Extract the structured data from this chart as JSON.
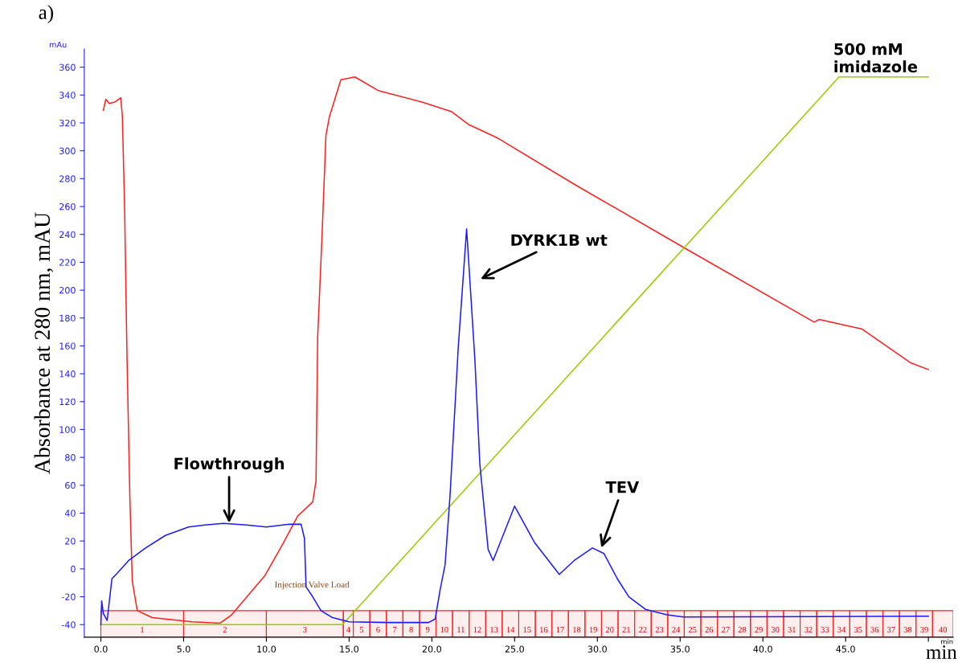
{
  "chart_data": {
    "type": "line",
    "title": "a)",
    "ylabel": "Absorbance at 280 nm, mAU",
    "xlabel": "min",
    "xlim": [
      -1,
      51.5
    ],
    "ylim": [
      -49,
      373
    ],
    "xticks": [
      {
        "value": 0,
        "label": "0.0"
      },
      {
        "value": 5,
        "label": "5.0"
      },
      {
        "value": 10,
        "label": "10.0"
      },
      {
        "value": 15,
        "label": "15.0"
      },
      {
        "value": 20,
        "label": "20.0"
      },
      {
        "value": 25,
        "label": "25.0"
      },
      {
        "value": 30,
        "label": "30.0"
      },
      {
        "value": 35,
        "label": "35.0"
      },
      {
        "value": 40,
        "label": "40.0"
      },
      {
        "value": 45,
        "label": "45.0"
      },
      {
        "value": 50,
        "label": null
      }
    ],
    "yticks": [
      -40,
      -20,
      0,
      20,
      40,
      60,
      80,
      100,
      120,
      140,
      160,
      180,
      200,
      220,
      240,
      260,
      280,
      300,
      320,
      340,
      360
    ],
    "grid": false,
    "legend": false,
    "line_style": "solid",
    "marker": "none",
    "series": [
      {
        "color": "#ff2020",
        "x": [
          0.15,
          0.3,
          0.5,
          0.85,
          1.2,
          1.3,
          1.44,
          1.58,
          1.75,
          1.9,
          2.2,
          3.1,
          5.5,
          7.2,
          7.9,
          8.9,
          9.9,
          11.0,
          11.9,
          12.8,
          13.0,
          13.1,
          13.35,
          13.6,
          13.8,
          14.5,
          15.35,
          16.8,
          19.4,
          21.2,
          22.2,
          24.0,
          28.6,
          35.3,
          43.1,
          43.4,
          46.0,
          48.9,
          50.0
        ],
        "values": [
          329,
          337,
          334,
          335,
          338,
          325,
          256,
          152,
          53,
          -9,
          -30,
          -35,
          -38,
          -39,
          -33,
          -19,
          -5,
          18,
          38,
          48,
          63,
          166,
          235,
          311,
          324,
          351,
          353,
          343,
          335,
          328,
          319,
          309,
          276,
          230,
          177,
          179,
          172,
          148,
          143
        ]
      },
      {
        "color": "#99cc00",
        "x": [
          0,
          14.6,
          44.6,
          50.0
        ],
        "values": [
          -40,
          -40,
          353,
          353
        ]
      },
      {
        "color": "#1a1aff",
        "x": [
          0.0,
          0.05,
          0.15,
          0.38,
          0.67,
          1.0,
          1.68,
          2.7,
          3.9,
          5.3,
          6.3,
          7.4,
          8.8,
          10.0,
          11.4,
          12.1,
          12.3,
          12.4,
          12.8,
          13.3,
          14.0,
          15.0,
          17.4,
          19.8,
          20.2,
          20.5,
          20.8,
          21.1,
          21.6,
          22.1,
          22.6,
          22.9,
          23.4,
          23.7,
          25.0,
          26.2,
          27.7,
          28.6,
          29.7,
          30.4,
          31.2,
          31.9,
          32.9,
          34.2,
          35.2,
          50.0
        ],
        "values": [
          -40,
          -23,
          -32,
          -37,
          -7,
          -3,
          6,
          15,
          24,
          30,
          31.5,
          32.6,
          31.5,
          30,
          32,
          32,
          22,
          -13,
          -20,
          -30,
          -35,
          -38,
          -38.5,
          -38.5,
          -36,
          -15,
          3,
          53,
          160,
          244,
          150,
          75,
          14,
          6,
          45,
          19,
          -4,
          6,
          15,
          11,
          -7,
          -20,
          -29,
          -33,
          -34.5,
          -34
        ]
      }
    ],
    "annotations": [
      "mAu",
      "min",
      {
        "text": "Flowthrough",
        "x": 7.75,
        "y": 33
      },
      "DYRK1B wt",
      "TEV",
      "500 mM\nimidazole",
      "Injection Valve Load"
    ],
    "bands": [
      {
        "axis": "x",
        "from": 0,
        "to": 5,
        "label": "1",
        "color": "#ff2020"
      },
      {
        "axis": "x",
        "from": 5,
        "to": 10,
        "label": "2",
        "color": "#ff2020"
      },
      {
        "axis": "x",
        "from": 10,
        "to": 14.65,
        "label": "3",
        "color": "#ff2020"
      },
      {
        "axis": "x",
        "from": 14.65,
        "to": 15.25,
        "label": "4",
        "color": "#ff2020"
      },
      {
        "axis": "x",
        "from": 15.25,
        "to": 16.25,
        "label": "5",
        "color": "#ff2020"
      },
      {
        "axis": "x",
        "from": 16.25,
        "to": 17.25,
        "label": "6",
        "color": "#ff2020"
      },
      {
        "axis": "x",
        "from": 17.25,
        "to": 18.25,
        "label": "7",
        "color": "#ff2020"
      },
      {
        "axis": "x",
        "from": 18.25,
        "to": 19.25,
        "label": "8",
        "color": "#ff2020"
      },
      {
        "axis": "x",
        "from": 19.25,
        "to": 20.25,
        "label": "9",
        "color": "#ff2020"
      },
      {
        "axis": "x",
        "from": 20.25,
        "to": 21.25,
        "label": "10",
        "color": "#ff2020"
      },
      {
        "axis": "x",
        "from": 21.25,
        "to": 22.25,
        "label": "11",
        "color": "#ff2020"
      },
      {
        "axis": "x",
        "from": 22.25,
        "to": 23.25,
        "label": "12",
        "color": "#ff2020"
      },
      {
        "axis": "x",
        "from": 23.25,
        "to": 24.25,
        "label": "13",
        "color": "#ff2020"
      },
      {
        "axis": "x",
        "from": 24.25,
        "to": 25.25,
        "label": "14",
        "color": "#ff2020"
      },
      {
        "axis": "x",
        "from": 25.25,
        "to": 26.25,
        "label": "15",
        "color": "#ff2020"
      },
      {
        "axis": "x",
        "from": 26.25,
        "to": 27.25,
        "label": "16",
        "color": "#ff2020"
      },
      {
        "axis": "x",
        "from": 27.25,
        "to": 28.25,
        "label": "17",
        "color": "#ff2020"
      },
      {
        "axis": "x",
        "from": 28.25,
        "to": 29.25,
        "label": "18",
        "color": "#ff2020"
      },
      {
        "axis": "x",
        "from": 29.25,
        "to": 30.25,
        "label": "19",
        "color": "#ff2020"
      },
      {
        "axis": "x",
        "from": 30.25,
        "to": 31.25,
        "label": "20",
        "color": "#ff2020"
      },
      {
        "axis": "x",
        "from": 31.25,
        "to": 32.25,
        "label": "21",
        "color": "#ff2020"
      },
      {
        "axis": "x",
        "from": 32.25,
        "to": 33.25,
        "label": "22",
        "color": "#ff2020"
      },
      {
        "axis": "x",
        "from": 33.25,
        "to": 34.25,
        "label": "23",
        "color": "#ff2020"
      },
      {
        "axis": "x",
        "from": 34.25,
        "to": 35.25,
        "label": "24",
        "color": "#ff2020"
      },
      {
        "axis": "x",
        "from": 35.25,
        "to": 36.25,
        "label": "25",
        "color": "#ff2020"
      },
      {
        "axis": "x",
        "from": 36.25,
        "to": 37.25,
        "label": "26",
        "color": "#ff2020"
      },
      {
        "axis": "x",
        "from": 37.25,
        "to": 38.25,
        "label": "27",
        "color": "#ff2020"
      },
      {
        "axis": "x",
        "from": 38.25,
        "to": 39.25,
        "label": "28",
        "color": "#ff2020"
      },
      {
        "axis": "x",
        "from": 39.25,
        "to": 40.25,
        "label": "29",
        "color": "#ff2020"
      },
      {
        "axis": "x",
        "from": 40.25,
        "to": 41.25,
        "label": "30",
        "color": "#ff2020"
      },
      {
        "axis": "x",
        "from": 41.25,
        "to": 42.25,
        "label": "31",
        "color": "#ff2020"
      },
      {
        "axis": "x",
        "from": 42.25,
        "to": 43.25,
        "label": "32",
        "color": "#ff2020"
      },
      {
        "axis": "x",
        "from": 43.25,
        "to": 44.25,
        "label": "33",
        "color": "#ff2020"
      },
      {
        "axis": "x",
        "from": 44.25,
        "to": 45.25,
        "label": "34",
        "color": "#ff2020"
      },
      {
        "axis": "x",
        "from": 45.25,
        "to": 46.25,
        "label": "35",
        "color": "#ff2020"
      },
      {
        "axis": "x",
        "from": 46.25,
        "to": 47.25,
        "label": "36",
        "color": "#ff2020"
      },
      {
        "axis": "x",
        "from": 47.25,
        "to": 48.25,
        "label": "37",
        "color": "#ff2020"
      },
      {
        "axis": "x",
        "from": 48.25,
        "to": 49.25,
        "label": "38",
        "color": "#ff2020"
      },
      {
        "axis": "x",
        "from": 49.25,
        "to": 50.25,
        "label": "39",
        "color": "#ff2020"
      },
      {
        "axis": "x",
        "from": 50.25,
        "to": 51.5,
        "label": "40",
        "color": "#ff2020"
      }
    ]
  }
}
